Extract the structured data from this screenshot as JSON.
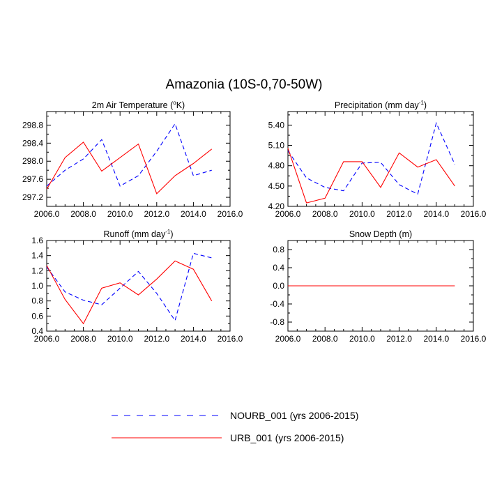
{
  "figure": {
    "title": "Amazonia (10S-0,70-50W)"
  },
  "legend": {
    "entries": [
      {
        "label": "NOURB_001 (yrs 2006-2015)",
        "color": "#0000ff",
        "dash": "dashed"
      },
      {
        "label": "URB_001 (yrs 2006-2015)",
        "color": "#ff0000",
        "dash": "solid"
      }
    ]
  },
  "chart_data": [
    {
      "type": "line",
      "title": "2m Air Temperature (°K)",
      "title_parts": {
        "main": "2m Air Temperature (",
        "sup": "o",
        "end": "K)"
      },
      "xlim": [
        2006,
        2016
      ],
      "ylim": [
        297.0,
        299.1
      ],
      "xticks": [
        "2006.0",
        "2008.0",
        "2010.0",
        "2012.0",
        "2014.0",
        "2016.0"
      ],
      "yticks": [
        "297.2",
        "297.6",
        "298.0",
        "298.4",
        "298.8"
      ],
      "x": [
        2006,
        2007,
        2008,
        2009,
        2010,
        2011,
        2012,
        2013,
        2014,
        2015
      ],
      "series": [
        {
          "name": "NOURB_001",
          "values": [
            297.45,
            297.8,
            298.05,
            298.48,
            297.45,
            297.68,
            298.22,
            298.83,
            297.68,
            297.8
          ]
        },
        {
          "name": "URB_001",
          "values": [
            297.38,
            298.08,
            298.42,
            297.78,
            298.08,
            298.38,
            297.28,
            297.68,
            297.95,
            298.27
          ]
        }
      ]
    },
    {
      "type": "line",
      "title": "Precipitation (mm day-1)",
      "title_parts": {
        "main": "Precipitation (mm day",
        "sup": "-1",
        "end": ")"
      },
      "xlim": [
        2006,
        2016
      ],
      "ylim": [
        4.2,
        5.6
      ],
      "xticks": [
        "2006.0",
        "2008.0",
        "2010.0",
        "2012.0",
        "2014.0",
        "2016.0"
      ],
      "yticks": [
        "4.20",
        "4.50",
        "4.80",
        "5.10",
        "5.40"
      ],
      "x": [
        2006,
        2007,
        2008,
        2009,
        2010,
        2011,
        2012,
        2013,
        2014,
        2015
      ],
      "series": [
        {
          "name": "NOURB_001",
          "values": [
            5.02,
            4.62,
            4.48,
            4.43,
            4.84,
            4.85,
            4.52,
            4.38,
            5.43,
            4.82
          ]
        },
        {
          "name": "URB_001",
          "values": [
            5.06,
            4.25,
            4.32,
            4.86,
            4.86,
            4.48,
            4.99,
            4.78,
            4.89,
            4.5
          ]
        }
      ]
    },
    {
      "type": "line",
      "title": "Runoff (mm day-1)",
      "title_parts": {
        "main": "Runoff (mm day",
        "sup": "-1",
        "end": ")"
      },
      "xlim": [
        2006,
        2016
      ],
      "ylim": [
        0.4,
        1.6
      ],
      "xticks": [
        "2006.0",
        "2008.0",
        "2010.0",
        "2012.0",
        "2014.0",
        "2016.0"
      ],
      "yticks": [
        "0.4",
        "0.6",
        "0.8",
        "1.0",
        "1.2",
        "1.4",
        "1.6"
      ],
      "x": [
        2006,
        2007,
        2008,
        2009,
        2010,
        2011,
        2012,
        2013,
        2014,
        2015
      ],
      "series": [
        {
          "name": "NOURB_001",
          "values": [
            1.25,
            0.92,
            0.81,
            0.75,
            0.97,
            1.19,
            0.9,
            0.54,
            1.43,
            1.37
          ]
        },
        {
          "name": "URB_001",
          "values": [
            1.27,
            0.82,
            0.5,
            0.97,
            1.04,
            0.88,
            1.09,
            1.33,
            1.22,
            0.8
          ]
        }
      ]
    },
    {
      "type": "line",
      "title": "Snow Depth (m)",
      "title_parts": {
        "main": "Snow Depth (m)",
        "sup": "",
        "end": ""
      },
      "xlim": [
        2006,
        2016
      ],
      "ylim": [
        -1.0,
        1.0
      ],
      "xticks": [
        "2006.0",
        "2008.0",
        "2010.0",
        "2012.0",
        "2014.0",
        "2016.0"
      ],
      "yticks": [
        "-0.8",
        "-0.4",
        "0.0",
        "0.4",
        "0.8"
      ],
      "x": [
        2006,
        2007,
        2008,
        2009,
        2010,
        2011,
        2012,
        2013,
        2014,
        2015
      ],
      "series": [
        {
          "name": "NOURB_001",
          "values": [
            0,
            0,
            0,
            0,
            0,
            0,
            0,
            0,
            0,
            0
          ]
        },
        {
          "name": "URB_001",
          "values": [
            0,
            0,
            0,
            0,
            0,
            0,
            0,
            0,
            0,
            0
          ]
        }
      ]
    }
  ]
}
